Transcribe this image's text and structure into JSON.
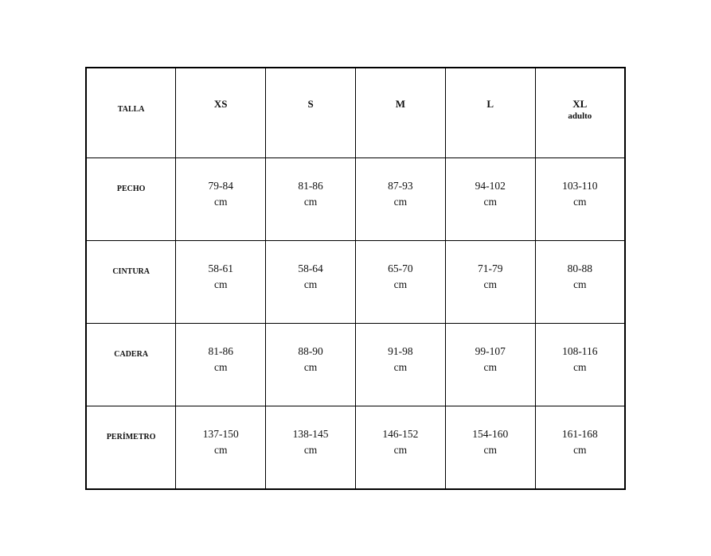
{
  "table": {
    "corner_label": "TALLA",
    "sizes": [
      {
        "label": "XS",
        "sub": ""
      },
      {
        "label": "S",
        "sub": ""
      },
      {
        "label": "M",
        "sub": ""
      },
      {
        "label": "L",
        "sub": ""
      },
      {
        "label": "XL",
        "sub": "adulto"
      }
    ],
    "unit": "cm",
    "rows": [
      {
        "label": "PECHO",
        "values": [
          "79-84",
          "81-86",
          "87-93",
          "94-102",
          "103-110"
        ]
      },
      {
        "label": "CINTURA",
        "values": [
          "58-61",
          "58-64",
          "65-70",
          "71-79",
          "80-88"
        ]
      },
      {
        "label": "CADERA",
        "values": [
          "81-86",
          "88-90",
          "91-98",
          "99-107",
          "108-116"
        ]
      },
      {
        "label": "PERÍMETRO",
        "values": [
          "137-150",
          "138-145",
          "146-152",
          "154-160",
          "161-168"
        ]
      }
    ]
  }
}
